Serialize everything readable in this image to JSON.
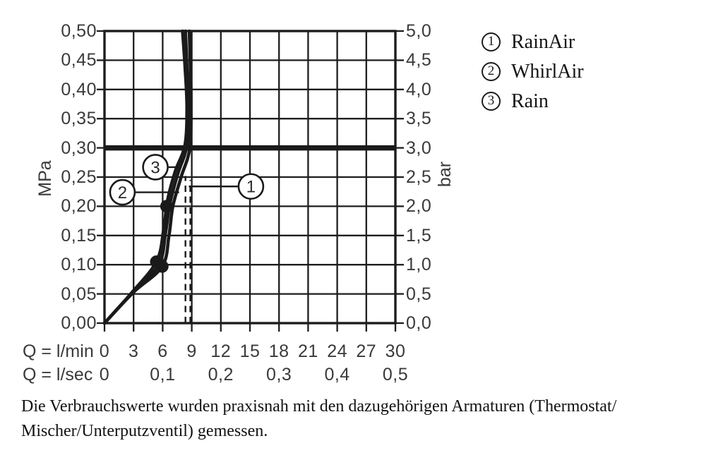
{
  "chart_data": {
    "type": "line",
    "title": "",
    "grid": true,
    "x_axis": {
      "primary_label": "Q = l/min",
      "primary_ticks": [
        {
          "text": "0",
          "v": 0
        },
        {
          "text": "3",
          "v": 3
        },
        {
          "text": "6",
          "v": 6
        },
        {
          "text": "9",
          "v": 9
        },
        {
          "text": "12",
          "v": 12
        },
        {
          "text": "15",
          "v": 15
        },
        {
          "text": "18",
          "v": 18
        },
        {
          "text": "21",
          "v": 21
        },
        {
          "text": "24",
          "v": 24
        },
        {
          "text": "27",
          "v": 27
        },
        {
          "text": "30",
          "v": 30
        }
      ],
      "secondary_label": "Q = l/sec",
      "secondary_ticks": [
        {
          "text": "0",
          "v": 0
        },
        {
          "text": "0,1",
          "v": 6
        },
        {
          "text": "0,2",
          "v": 12
        },
        {
          "text": "0,3",
          "v": 18
        },
        {
          "text": "0,4",
          "v": 24
        },
        {
          "text": "0,5",
          "v": 30
        }
      ],
      "range_lmin": [
        0,
        30
      ]
    },
    "y_axis_left": {
      "label": "MPa",
      "range": [
        0,
        0.5
      ],
      "ticks": [
        {
          "text": "0,00",
          "v": 0.0
        },
        {
          "text": "0,05",
          "v": 0.05
        },
        {
          "text": "0,10",
          "v": 0.1
        },
        {
          "text": "0,15",
          "v": 0.15
        },
        {
          "text": "0,20",
          "v": 0.2
        },
        {
          "text": "0,25",
          "v": 0.25
        },
        {
          "text": "0,30",
          "v": 0.3
        },
        {
          "text": "0,35",
          "v": 0.35
        },
        {
          "text": "0,40",
          "v": 0.4
        },
        {
          "text": "0,45",
          "v": 0.45
        },
        {
          "text": "0,50",
          "v": 0.5
        }
      ]
    },
    "y_axis_right": {
      "label": "bar",
      "range": [
        0,
        5
      ],
      "ticks": [
        {
          "text": "0,0",
          "v": 0.0
        },
        {
          "text": "0,5",
          "v": 0.05
        },
        {
          "text": "1,0",
          "v": 0.1
        },
        {
          "text": "1,5",
          "v": 0.15
        },
        {
          "text": "2,0",
          "v": 0.2
        },
        {
          "text": "2,5",
          "v": 0.25
        },
        {
          "text": "3,0",
          "v": 0.3
        },
        {
          "text": "3,5",
          "v": 0.35
        },
        {
          "text": "4,0",
          "v": 0.4
        },
        {
          "text": "4,5",
          "v": 0.45
        },
        {
          "text": "5,0",
          "v": 0.5
        }
      ]
    },
    "reference_pressure_line_mpa": 0.3,
    "dashed_flow_lines": [
      {
        "x_lmin": 8.35,
        "y_top_mpa": 0.252
      },
      {
        "x_lmin": 8.85,
        "y_top_mpa": 0.245
      }
    ],
    "series": [
      {
        "id": "1",
        "name": "RainAir",
        "points_lmin_mpa": [
          [
            0,
            0
          ],
          [
            3.0,
            0.053
          ],
          [
            5.95,
            0.097
          ],
          [
            6.65,
            0.15
          ],
          [
            7.05,
            0.2
          ],
          [
            7.9,
            0.25
          ],
          [
            8.8,
            0.3
          ],
          [
            8.92,
            0.38
          ],
          [
            8.85,
            0.44
          ],
          [
            8.75,
            0.5
          ]
        ]
      },
      {
        "id": "2",
        "name": "WhirlAir",
        "points_lmin_mpa": [
          [
            0,
            0
          ],
          [
            2.7,
            0.05
          ],
          [
            5.35,
            0.105
          ],
          [
            6.1,
            0.16
          ],
          [
            6.5,
            0.21
          ],
          [
            7.3,
            0.26
          ],
          [
            8.3,
            0.305
          ],
          [
            8.5,
            0.37
          ],
          [
            8.3,
            0.44
          ],
          [
            8.05,
            0.5
          ]
        ]
      },
      {
        "id": "3",
        "name": "Rain",
        "points_lmin_mpa": [
          [
            0,
            0
          ],
          [
            2.85,
            0.052
          ],
          [
            5.6,
            0.1
          ],
          [
            6.3,
            0.155
          ],
          [
            6.75,
            0.205
          ],
          [
            7.55,
            0.255
          ],
          [
            8.5,
            0.305
          ],
          [
            8.65,
            0.38
          ],
          [
            8.5,
            0.44
          ],
          [
            8.35,
            0.5
          ]
        ]
      }
    ],
    "point_markers_lmin_mpa": [
      [
        5.35,
        0.105
      ],
      [
        5.95,
        0.097
      ],
      [
        6.4,
        0.2
      ]
    ],
    "curve_callouts": [
      {
        "num": "1",
        "center_lmin_mpa": [
          15.1,
          0.234
        ],
        "leader_to_x_lmin": 8.7
      },
      {
        "num": "2",
        "center_lmin_mpa": [
          1.85,
          0.224
        ],
        "leader_to_x_lmin": 7.7
      },
      {
        "num": "3",
        "center_lmin_mpa": [
          5.25,
          0.267
        ],
        "leader_to_x_lmin": 7.95
      }
    ]
  },
  "legend": {
    "items": [
      {
        "num": "1",
        "label": "RainAir"
      },
      {
        "num": "2",
        "label": "WhirlAir"
      },
      {
        "num": "3",
        "label": "Rain"
      }
    ]
  },
  "caption": {
    "line1": "Die Verbrauchswerte wurden praxisnah mit den dazugehörigen Armaturen (Thermostat/",
    "line2": "Mischer/Unterputzventil) gemessen."
  },
  "colors": {
    "background": "#ffffff",
    "line": "#1a1a1a",
    "grid": "#1d1d1d",
    "text": "#3a3a3a"
  }
}
